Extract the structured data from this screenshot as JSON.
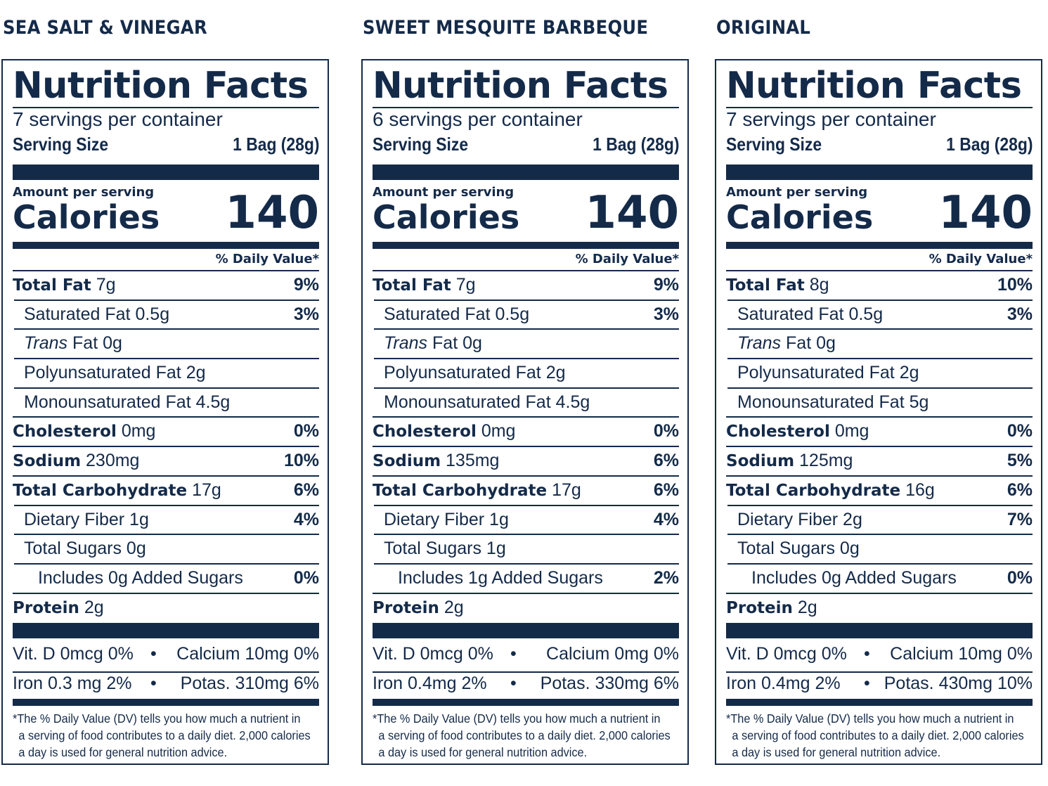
{
  "labels": [
    {
      "flavor": "SEA SALT & VINEGAR",
      "title": "Nutrition Facts",
      "servings": "7 servings per container",
      "serving_size_label": "Serving Size",
      "serving_size_value": "1 Bag (28g)",
      "amount_per_serving": "Amount per serving",
      "calories_label": "Calories",
      "calories_value": "140",
      "dv_header": "% Daily Value*",
      "rows": [
        {
          "name": "Total Fat",
          "amount": "7g",
          "dv": "9%"
        },
        {
          "name": "Saturated Fat",
          "amount": "0.5g",
          "dv": "3%"
        },
        {
          "name_italic": "Trans",
          "name": "Fat",
          "amount": "0g",
          "dv": ""
        },
        {
          "name": "Polyunsaturated Fat",
          "amount": "2g",
          "dv": ""
        },
        {
          "name": "Monounsaturated Fat",
          "amount": "4.5g",
          "dv": ""
        },
        {
          "name": "Cholesterol",
          "amount": "0mg",
          "dv": "0%"
        },
        {
          "name": "Sodium",
          "amount": "230mg",
          "dv": "10%"
        },
        {
          "name": "Total Carbohydrate",
          "amount": "17g",
          "dv": "6%"
        },
        {
          "name": "Dietary Fiber",
          "amount": "1g",
          "dv": "4%"
        },
        {
          "name": "Total Sugars",
          "amount": "0g",
          "dv": ""
        },
        {
          "name": "Includes 0g Added Sugars",
          "amount": "",
          "dv": "0%"
        },
        {
          "name": "Protein",
          "amount": "2g",
          "dv": ""
        }
      ],
      "vit_d": "Vit. D 0mcg 0%",
      "calcium": "Calcium 10mg 0%",
      "iron": "Iron 0.3 mg  2%",
      "potassium": "Potas. 310mg 6%",
      "footnote": [
        "*The % Daily Value (DV) tells you how much a nutrient in",
        "a serving of food contributes to a daily diet. 2,000 calories",
        "a day is used for general nutrition advice."
      ]
    },
    {
      "flavor": "SWEET MESQUITE BARBEQUE",
      "title": "Nutrition Facts",
      "servings": "6 servings per container",
      "serving_size_label": "Serving Size",
      "serving_size_value": "1 Bag (28g)",
      "amount_per_serving": "Amount per serving",
      "calories_label": "Calories",
      "calories_value": "140",
      "dv_header": "% Daily Value*",
      "rows": [
        {
          "name": "Total Fat",
          "amount": "7g",
          "dv": "9%"
        },
        {
          "name": "Saturated Fat",
          "amount": "0.5g",
          "dv": "3%"
        },
        {
          "name_italic": "Trans",
          "name": "Fat",
          "amount": "0g",
          "dv": ""
        },
        {
          "name": "Polyunsaturated Fat",
          "amount": "2g",
          "dv": ""
        },
        {
          "name": "Monounsaturated Fat",
          "amount": "4.5g",
          "dv": ""
        },
        {
          "name": "Cholesterol",
          "amount": "0mg",
          "dv": "0%"
        },
        {
          "name": "Sodium",
          "amount": "135mg",
          "dv": "6%"
        },
        {
          "name": "Total Carbohydrate",
          "amount": "17g",
          "dv": "6%"
        },
        {
          "name": "Dietary Fiber",
          "amount": "1g",
          "dv": "4%"
        },
        {
          "name": "Total Sugars",
          "amount": "1g",
          "dv": ""
        },
        {
          "name": "Includes 1g Added Sugars",
          "amount": "",
          "dv": "2%"
        },
        {
          "name": "Protein",
          "amount": "2g",
          "dv": ""
        }
      ],
      "vit_d": "Vit. D 0mcg 0%",
      "calcium": "Calcium 0mg 0%",
      "iron": "Iron 0.4mg  2%",
      "potassium": "Potas. 330mg 6%",
      "footnote": [
        "*The % Daily Value (DV) tells you how much a nutrient in",
        "a serving of food contributes to a daily diet. 2,000 calories",
        "a day is used for general nutrition advice."
      ]
    },
    {
      "flavor": "ORIGINAL",
      "title": "Nutrition Facts",
      "servings": "7 servings per container",
      "serving_size_label": "Serving Size",
      "serving_size_value": "1 Bag (28g)",
      "amount_per_serving": "Amount per serving",
      "calories_label": "Calories",
      "calories_value": "140",
      "dv_header": "% Daily Value*",
      "rows": [
        {
          "name": "Total Fat",
          "amount": "8g",
          "dv": "10%"
        },
        {
          "name": "Saturated Fat",
          "amount": "0.5g",
          "dv": "3%"
        },
        {
          "name_italic": "Trans",
          "name": "Fat",
          "amount": "0g",
          "dv": ""
        },
        {
          "name": "Polyunsaturated Fat",
          "amount": "2g",
          "dv": ""
        },
        {
          "name": "Monounsaturated Fat",
          "amount": "5g",
          "dv": ""
        },
        {
          "name": "Cholesterol",
          "amount": "0mg",
          "dv": "0%"
        },
        {
          "name": "Sodium",
          "amount": "125mg",
          "dv": "5%"
        },
        {
          "name": "Total Carbohydrate",
          "amount": "16g",
          "dv": "6%"
        },
        {
          "name": "Dietary Fiber",
          "amount": "2g",
          "dv": "7%"
        },
        {
          "name": "Total Sugars",
          "amount": "0g",
          "dv": ""
        },
        {
          "name": "Includes 0g Added Sugars",
          "amount": "",
          "dv": "0%"
        },
        {
          "name": "Protein",
          "amount": "2g",
          "dv": ""
        }
      ],
      "vit_d": "Vit. D 0mcg 0%",
      "calcium": "Calcium 10mg 0%",
      "iron": "Iron 0.4mg  2%",
      "potassium": "Potas. 430mg 10%",
      "footnote": [
        "*The % Daily Value (DV) tells you how much a nutrient in",
        "a serving of food contributes to a daily diet. 2,000 calories",
        "a day is used for general nutrition advice."
      ]
    }
  ],
  "ink_color": "#142a49",
  "bullet": "•"
}
